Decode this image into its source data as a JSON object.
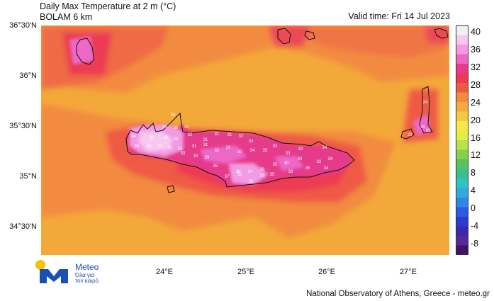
{
  "title": {
    "line1": "Daily Max Temperature at 2 m (°C)",
    "line2": "BOLAM 6 km",
    "valid": "Valid time: Fri 14 Jul 2023"
  },
  "axes": {
    "lat_labels": [
      "36°30'N",
      "36°N",
      "35°30'N",
      "35°N",
      "34°30'N"
    ],
    "lon_labels": [
      "24°E",
      "25°E",
      "26°E",
      "27°E"
    ]
  },
  "colorbar": {
    "labels": [
      "40",
      "36",
      "32",
      "28",
      "24",
      "20",
      "16",
      "12",
      "8",
      "4",
      "0",
      "-4",
      "-8"
    ],
    "colors": [
      "#f4f0f8",
      "#f8c8f0",
      "#f49ae4",
      "#ee67c8",
      "#e63a8a",
      "#ec3a52",
      "#ef5a45",
      "#f28b40",
      "#f3ab3e",
      "#f5c842",
      "#f5e84a",
      "#e2ee46",
      "#b8e14a",
      "#86d04c",
      "#58c25c",
      "#3bbf8f",
      "#31c3c2",
      "#31a9de",
      "#2f86e5",
      "#2b5ce0",
      "#2b3ad0",
      "#3b28b0",
      "#552a94",
      "#3f1266"
    ]
  },
  "crete_values": [
    "34",
    "34",
    "35",
    "33",
    "32",
    "30",
    "28",
    "34",
    "34",
    "34",
    "33",
    "33",
    "33",
    "32",
    "31",
    "31",
    "31",
    "32",
    "33",
    "29",
    "30",
    "32",
    "31",
    "31",
    "34",
    "35",
    "32",
    "33",
    "32",
    "30",
    "33",
    "35",
    "32",
    "34",
    "34",
    "33",
    "35",
    "36",
    "34",
    "36",
    "37",
    "35",
    "35",
    "33",
    "35",
    "35",
    "29",
    "32",
    "33",
    "34"
  ],
  "karpathos_values": [
    "34",
    "34",
    "33",
    "32"
  ],
  "logo": {
    "name": "Meteo",
    "subtitle": "Όλα για τον καιρό"
  },
  "credit": "National Observatory of Athens, Greece - meteo.gr"
}
